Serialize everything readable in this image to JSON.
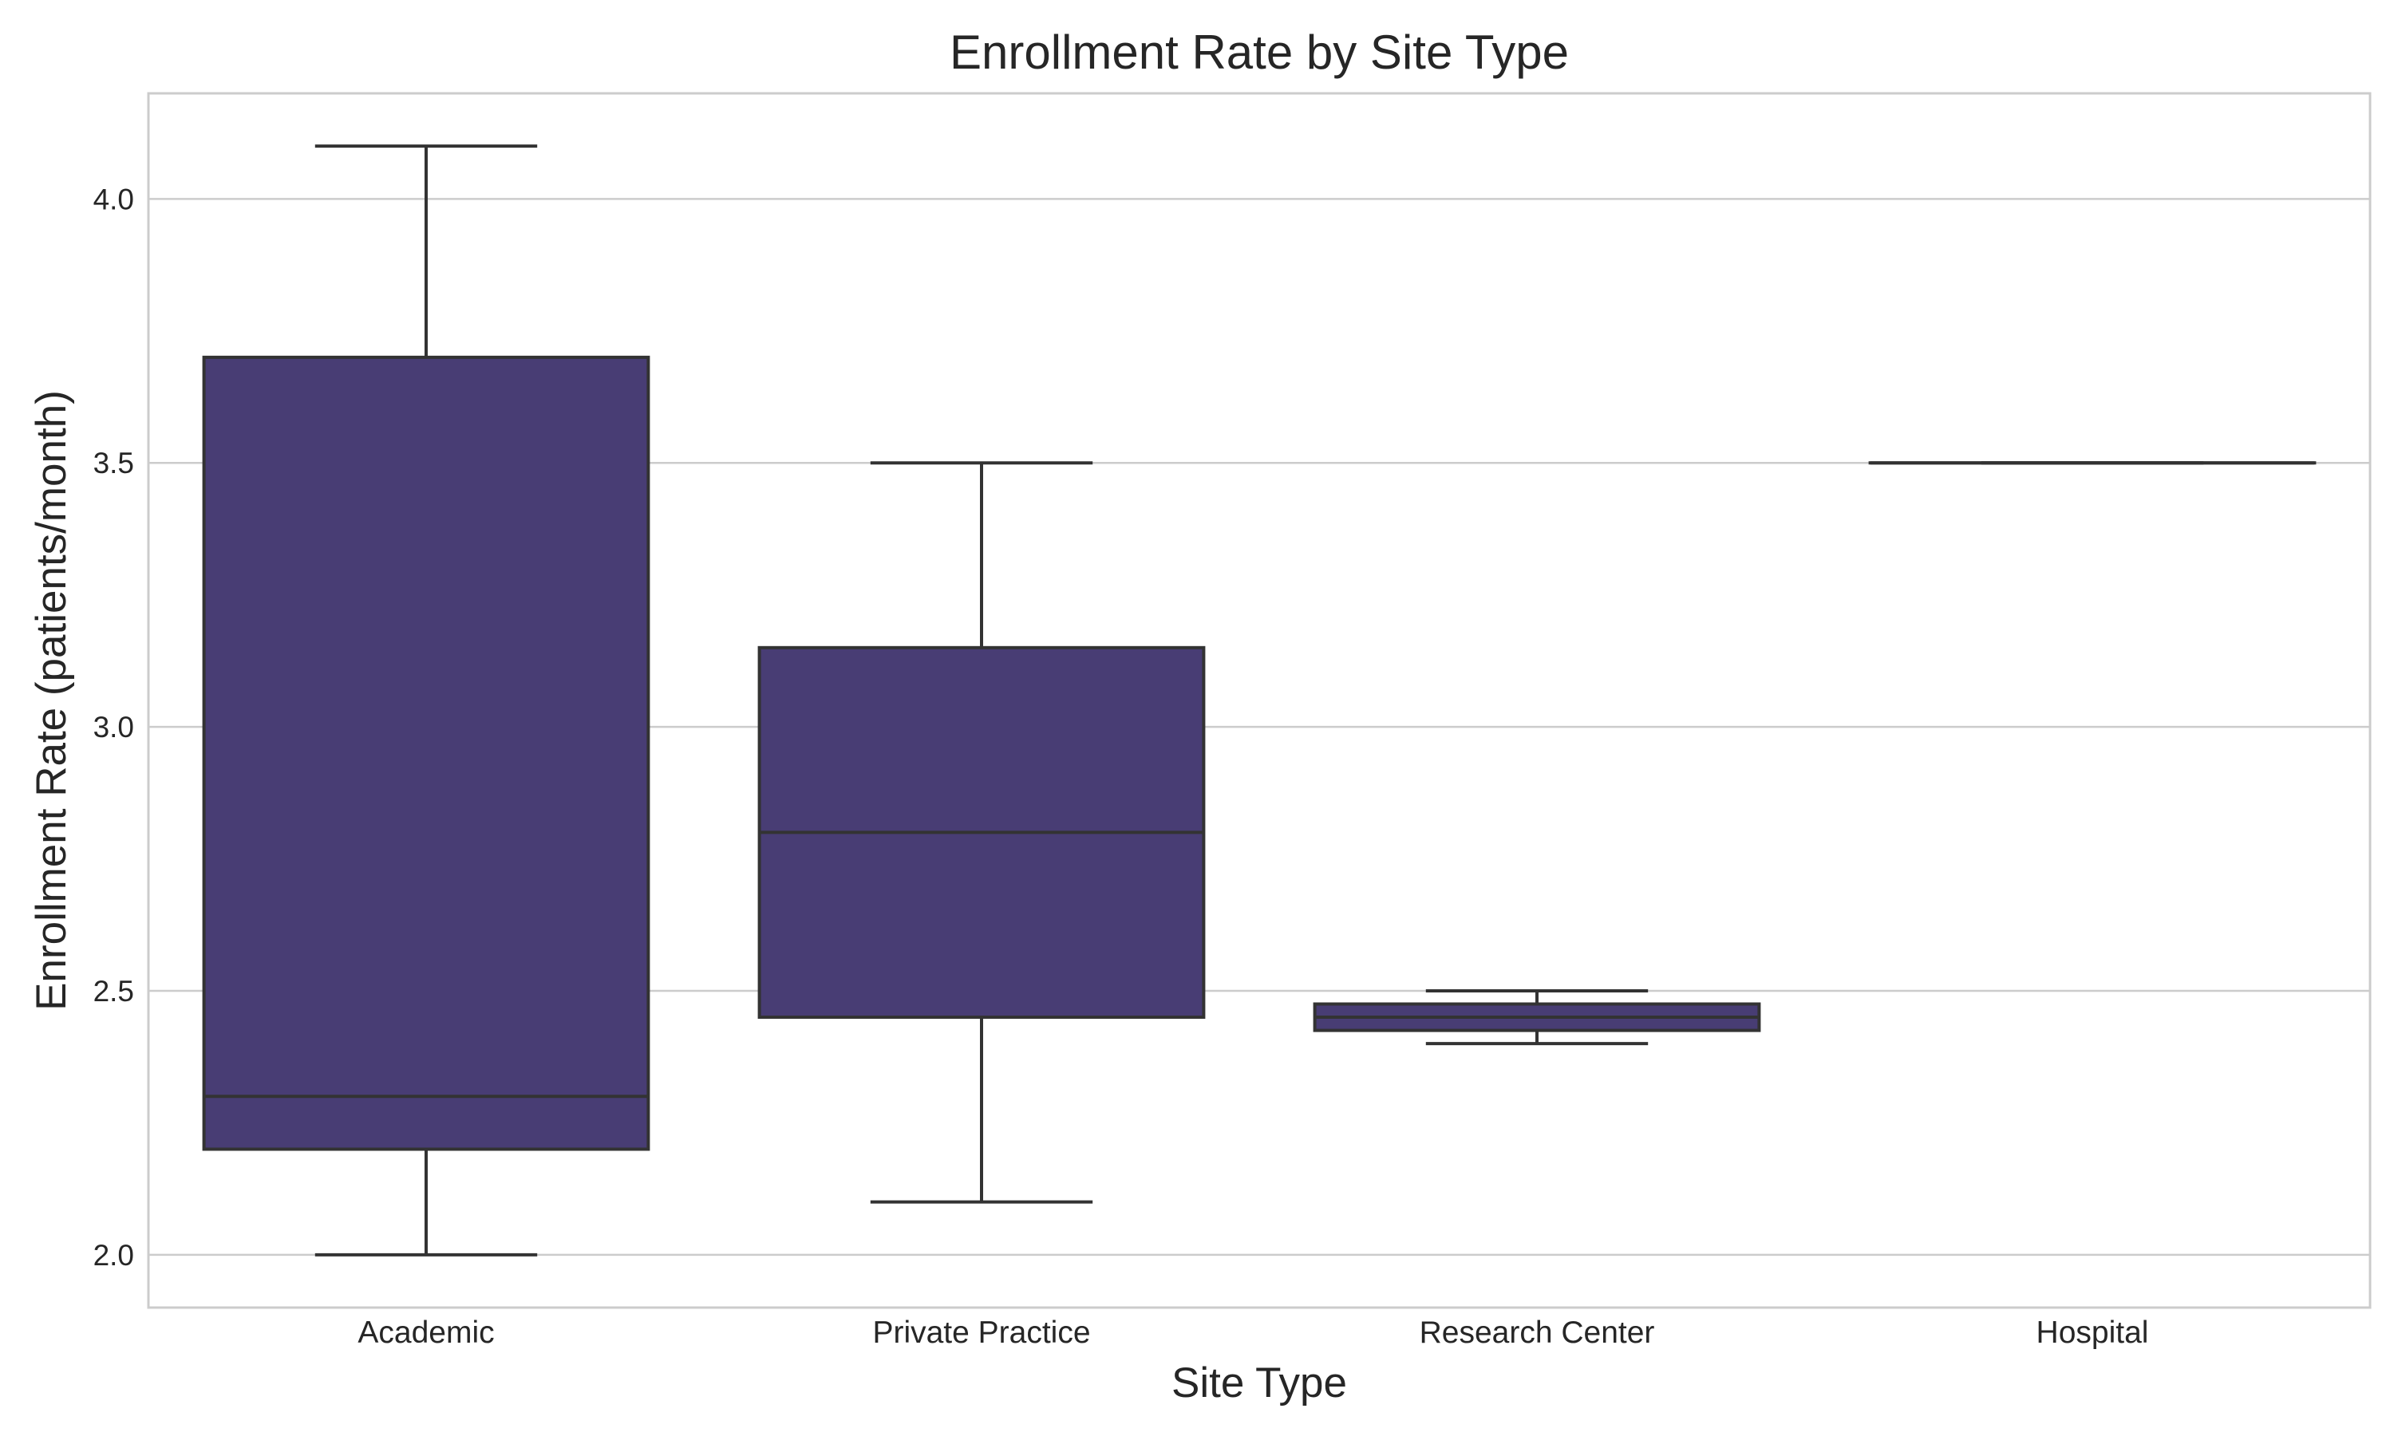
{
  "chart_data": {
    "type": "boxplot",
    "title": "Enrollment Rate by Site Type",
    "xlabel": "Site Type",
    "ylabel": "Enrollment Rate (patients/month)",
    "ylim": [
      1.9,
      4.2
    ],
    "yticks": [
      2.0,
      2.5,
      3.0,
      3.5,
      4.0
    ],
    "ytick_labels": [
      "2.0",
      "2.5",
      "3.0",
      "3.5",
      "4.0"
    ],
    "grid": "horizontal",
    "box_color": "#483d74",
    "categories": [
      "Academic",
      "Private Practice",
      "Research Center",
      "Hospital"
    ],
    "boxes": [
      {
        "category": "Academic",
        "whisker_low": 2.0,
        "q1": 2.2,
        "median": 2.3,
        "q3": 3.7,
        "whisker_high": 4.1
      },
      {
        "category": "Private Practice",
        "whisker_low": 2.1,
        "q1": 2.45,
        "median": 2.8,
        "q3": 3.15,
        "whisker_high": 3.5
      },
      {
        "category": "Research Center",
        "whisker_low": 2.4,
        "q1": 2.425,
        "median": 2.45,
        "q3": 2.475,
        "whisker_high": 2.5
      },
      {
        "category": "Hospital",
        "whisker_low": 3.5,
        "q1": 3.5,
        "median": 3.5,
        "q3": 3.5,
        "whisker_high": 3.5
      }
    ]
  }
}
